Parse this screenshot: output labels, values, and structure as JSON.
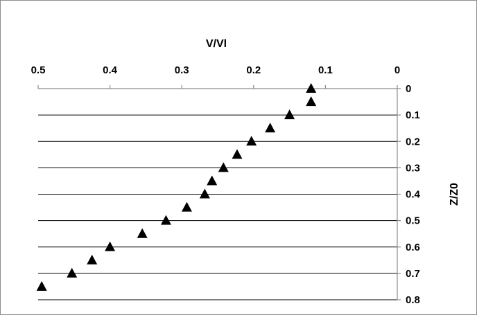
{
  "chart_data": {
    "type": "scatter",
    "title": "",
    "xlabel": "V/Vl",
    "ylabel": "Z/Z0",
    "x_axis_position": "top",
    "x_axis_reversed": true,
    "y_axis_position": "right",
    "y_axis_reversed": true,
    "xlim": [
      0,
      0.5
    ],
    "ylim": [
      0,
      0.8
    ],
    "x_ticks": [
      "0.5",
      "0.4",
      "0.3",
      "0.2",
      "0.1",
      "0"
    ],
    "y_ticks": [
      "0",
      "0.1",
      "0.2",
      "0.3",
      "0.4",
      "0.5",
      "0.6",
      "0.7",
      "0.8"
    ],
    "grid": "horizontal",
    "marker": "triangle",
    "marker_color": "#000000",
    "series": [
      {
        "x": [
          0.12,
          0.12,
          0.15,
          0.177,
          0.203,
          0.223,
          0.242,
          0.258,
          0.268,
          0.293,
          0.322,
          0.355,
          0.4,
          0.425,
          0.453,
          0.495
        ],
        "y": [
          0.0,
          0.05,
          0.1,
          0.15,
          0.2,
          0.25,
          0.3,
          0.35,
          0.4,
          0.45,
          0.5,
          0.55,
          0.6,
          0.65,
          0.7,
          0.75
        ]
      }
    ]
  }
}
